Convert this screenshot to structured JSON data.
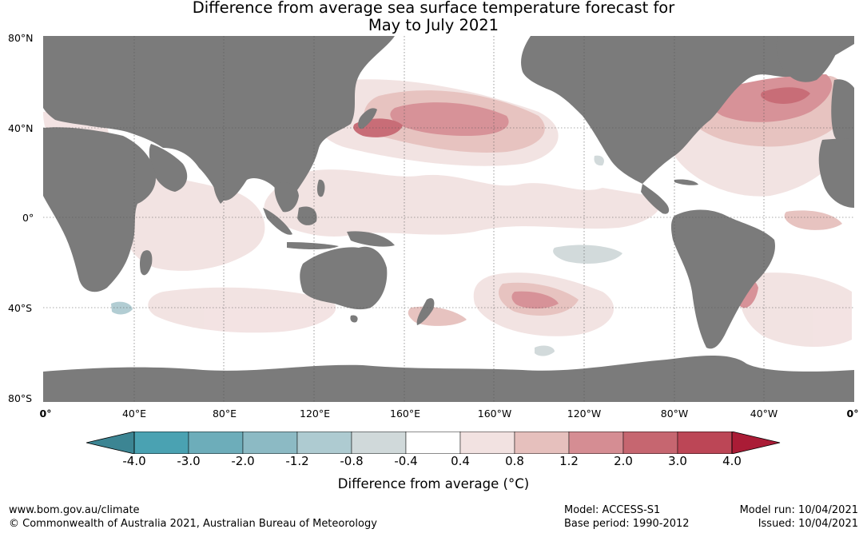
{
  "title_line1": "Difference from average sea surface temperature forecast for",
  "title_line2": "May to July 2021",
  "lat_labels": [
    "80°N",
    "40°N",
    "0°",
    "40°S",
    "80°S"
  ],
  "lon_labels": [
    "0°",
    "40°E",
    "80°E",
    "120°E",
    "160°E",
    "160°W",
    "120°W",
    "80°W",
    "40°W",
    "0°"
  ],
  "colorbar": {
    "label": "Difference from average (°C)",
    "ticks": [
      "-4.0",
      "-3.0",
      "-2.0",
      "-1.2",
      "-0.8",
      "-0.4",
      "0.4",
      "0.8",
      "1.2",
      "2.0",
      "3.0",
      "4.0"
    ],
    "bin_colors": [
      "#4aa2b2",
      "#6dadba",
      "#8cbac4",
      "#aecbd1",
      "#d0d9da",
      "#ffffff",
      "#f2e2e1",
      "#e6c0bd",
      "#d58d93",
      "#c66670",
      "#bc4656"
    ],
    "low_extend_color": "#3c8593",
    "high_extend_color": "#aa1c36"
  },
  "colors": {
    "land": "#7b7b7b",
    "ocean": "#ffffff"
  },
  "footer": {
    "website": "www.bom.gov.au/climate",
    "copyright": "© Commonwealth of Australia 2021, Australian Bureau of Meteorology",
    "model": "Model: ACCESS-S1",
    "base_period": "Base period: 1990-2012",
    "model_run": "Model run: 10/04/2021",
    "issued": "Issued: 10/04/2021"
  }
}
